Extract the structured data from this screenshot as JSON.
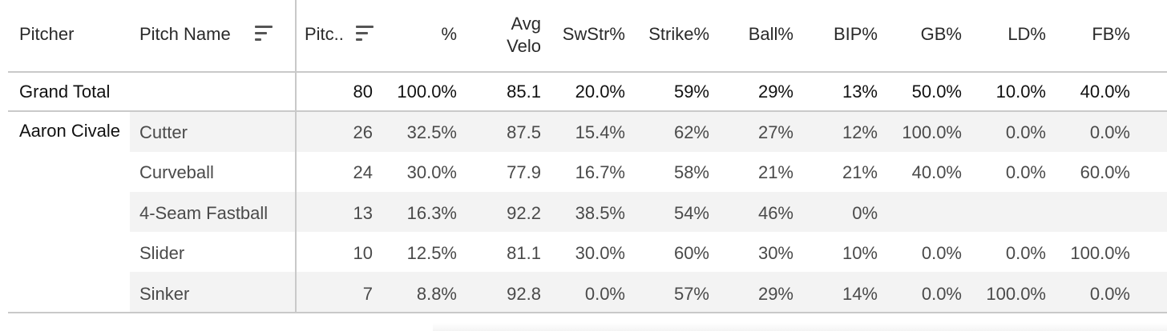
{
  "headers": {
    "pitcher": "Pitcher",
    "pitch_name": "Pitch Name",
    "pitches": "Pitc..",
    "pct": "%",
    "avg_velo_line1": "Avg",
    "avg_velo_line2": "Velo",
    "swstr": "SwStr%",
    "strike": "Strike%",
    "ball": "Ball%",
    "bip": "BIP%",
    "gb": "GB%",
    "ld": "LD%",
    "fb": "FB%"
  },
  "grand_total": {
    "label": "Grand Total",
    "pitches": "80",
    "pct": "100.0%",
    "avg_velo": "85.1",
    "swstr": "20.0%",
    "strike": "59%",
    "ball": "29%",
    "bip": "13%",
    "gb": "50.0%",
    "ld": "10.0%",
    "fb": "40.0%"
  },
  "pitcher_name": "Aaron Civale",
  "rows": [
    {
      "pitch_name": "Cutter",
      "pitches": "26",
      "pct": "32.5%",
      "avg_velo": "87.5",
      "swstr": "15.4%",
      "strike": "62%",
      "ball": "27%",
      "bip": "12%",
      "gb": "100.0%",
      "ld": "0.0%",
      "fb": "0.0%"
    },
    {
      "pitch_name": "Curveball",
      "pitches": "24",
      "pct": "30.0%",
      "avg_velo": "77.9",
      "swstr": "16.7%",
      "strike": "58%",
      "ball": "21%",
      "bip": "21%",
      "gb": "40.0%",
      "ld": "0.0%",
      "fb": "60.0%"
    },
    {
      "pitch_name": "4-Seam Fastball",
      "pitches": "13",
      "pct": "16.3%",
      "avg_velo": "92.2",
      "swstr": "38.5%",
      "strike": "54%",
      "ball": "46%",
      "bip": "0%",
      "gb": "",
      "ld": "",
      "fb": ""
    },
    {
      "pitch_name": "Slider",
      "pitches": "10",
      "pct": "12.5%",
      "avg_velo": "81.1",
      "swstr": "30.0%",
      "strike": "60%",
      "ball": "30%",
      "bip": "10%",
      "gb": "0.0%",
      "ld": "0.0%",
      "fb": "100.0%"
    },
    {
      "pitch_name": "Sinker",
      "pitches": "7",
      "pct": "8.8%",
      "avg_velo": "92.8",
      "swstr": "0.0%",
      "strike": "57%",
      "ball": "29%",
      "bip": "14%",
      "gb": "0.0%",
      "ld": "100.0%",
      "fb": "0.0%"
    }
  ]
}
